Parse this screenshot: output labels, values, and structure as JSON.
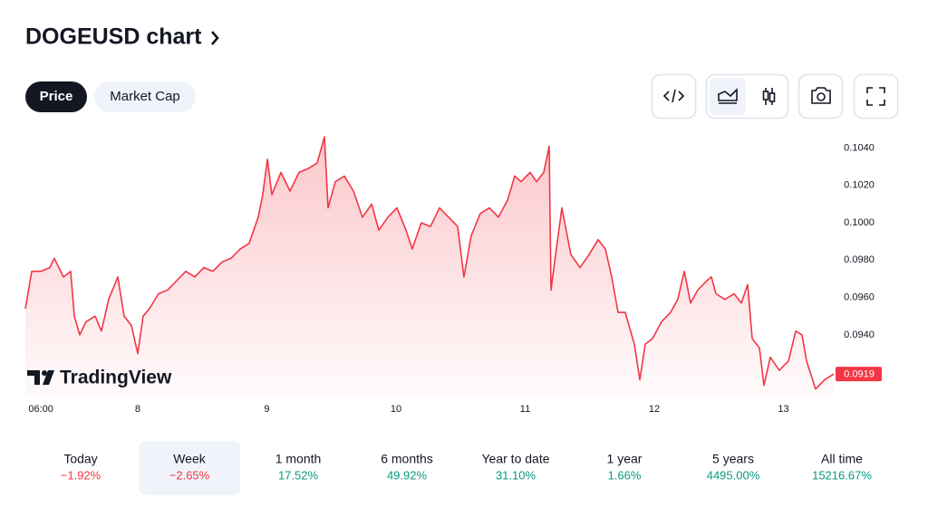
{
  "header": {
    "title": "DOGEUSD chart"
  },
  "tabs": [
    "Price",
    "Market Cap"
  ],
  "watermark": "TradingView",
  "chart_data": {
    "type": "line",
    "xlim": [
      7.13,
      13.4
    ],
    "xticks": [
      {
        "value": 7.25,
        "label": "06:00"
      },
      8,
      9,
      10,
      11,
      12,
      13
    ],
    "ylim": [
      0.0906,
      0.1049
    ],
    "yticks": [
      {
        "value": 0.094,
        "label": "0.0940"
      },
      {
        "value": 0.096,
        "label": "0.0960"
      },
      {
        "value": 0.098,
        "label": "0.0980"
      },
      {
        "value": 0.1,
        "label": "0.1000"
      },
      {
        "value": 0.102,
        "label": "0.1020"
      },
      {
        "value": 0.104,
        "label": "0.1040"
      }
    ],
    "grid": false,
    "series": [
      {
        "color": "#f23645",
        "x": [
          7.13,
          7.179,
          7.249,
          7.319,
          7.354,
          7.425,
          7.481,
          7.509,
          7.551,
          7.6,
          7.67,
          7.719,
          7.775,
          7.846,
          7.895,
          7.951,
          8,
          8.042,
          8.091,
          8.161,
          8.232,
          8.302,
          8.372,
          8.442,
          8.512,
          8.582,
          8.653,
          8.723,
          8.793,
          8.863,
          8.933,
          8.968,
          9.004,
          9.039,
          9.109,
          9.179,
          9.249,
          9.319,
          9.389,
          9.446,
          9.474,
          9.53,
          9.6,
          9.67,
          9.74,
          9.811,
          9.867,
          9.937,
          10.007,
          10.077,
          10.126,
          10.196,
          10.267,
          10.337,
          10.407,
          10.477,
          10.526,
          10.582,
          10.653,
          10.723,
          10.793,
          10.863,
          10.919,
          10.968,
          11.039,
          11.088,
          11.144,
          11.186,
          11.2,
          11.228,
          11.284,
          11.354,
          11.425,
          11.495,
          11.565,
          11.621,
          11.67,
          11.719,
          11.775,
          11.846,
          11.888,
          11.93,
          11.986,
          12.056,
          12.126,
          12.182,
          12.232,
          12.281,
          12.337,
          12.407,
          12.442,
          12.477,
          12.547,
          12.618,
          12.674,
          12.723,
          12.758,
          12.814,
          12.849,
          12.898,
          12.968,
          13.039,
          13.095,
          13.144,
          13.179,
          13.249,
          13.319,
          13.389
        ],
        "values": [
          0.0954,
          0.0974,
          0.0974,
          0.0976,
          0.0981,
          0.0971,
          0.0974,
          0.095,
          0.094,
          0.0947,
          0.095,
          0.0942,
          0.0959,
          0.0971,
          0.095,
          0.0945,
          0.093,
          0.095,
          0.0954,
          0.0962,
          0.0964,
          0.0969,
          0.0974,
          0.0971,
          0.0976,
          0.0974,
          0.0979,
          0.0981,
          0.0986,
          0.0989,
          0.1003,
          0.1015,
          0.1034,
          0.1015,
          0.1027,
          0.1017,
          0.1027,
          0.1029,
          0.1032,
          0.1046,
          0.1008,
          0.1022,
          0.1025,
          0.1017,
          0.1003,
          0.101,
          0.0996,
          0.1003,
          0.1008,
          0.0996,
          0.0986,
          0.1,
          0.0998,
          0.1008,
          0.1003,
          0.0998,
          0.0971,
          0.0993,
          0.1005,
          0.1008,
          0.1003,
          0.1012,
          0.1025,
          0.1022,
          0.1027,
          0.1022,
          0.1027,
          0.1041,
          0.0964,
          0.0979,
          0.1008,
          0.0983,
          0.0976,
          0.0983,
          0.0991,
          0.0986,
          0.0971,
          0.0952,
          0.0952,
          0.0935,
          0.0916,
          0.0935,
          0.0938,
          0.0947,
          0.0952,
          0.0959,
          0.0974,
          0.0957,
          0.0964,
          0.0969,
          0.0971,
          0.0962,
          0.0959,
          0.0962,
          0.0957,
          0.0967,
          0.0938,
          0.0933,
          0.0913,
          0.0928,
          0.0921,
          0.0926,
          0.0942,
          0.094,
          0.0926,
          0.0911,
          0.0916,
          0.0919
        ]
      }
    ]
  },
  "periods": [
    {
      "label": "Today",
      "change": "−1.92%"
    },
    {
      "label": "Week",
      "change": "−2.65%"
    },
    {
      "label": "1 month",
      "change": "17.52%"
    },
    {
      "label": "6 months",
      "change": "49.92%"
    },
    {
      "label": "Year to date",
      "change": "31.10%"
    },
    {
      "label": "1 year",
      "change": "1.66%"
    },
    {
      "label": "5 years",
      "change": "4495.00%"
    },
    {
      "label": "All time",
      "change": "15216.67%"
    }
  ]
}
